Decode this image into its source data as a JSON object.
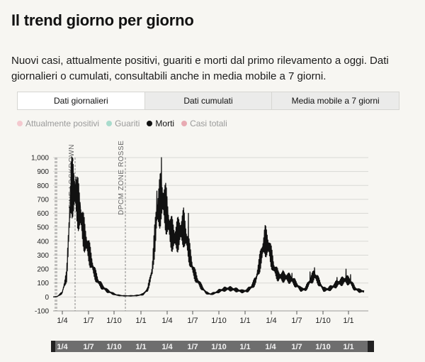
{
  "header": {
    "title": "Il trend giorno per giorno",
    "subtitle": "Nuovi casi, attualmente positivi, guariti e morti dal primo rilevamento a oggi. Dati giornalieri o cumulati, consultabili anche in media mobile a 7 giorni."
  },
  "tabs": [
    {
      "label": "Dati giornalieri",
      "active": true
    },
    {
      "label": "Dati cumulati",
      "active": false
    },
    {
      "label": "Media mobile a 7 giorni",
      "active": false
    }
  ],
  "legend": [
    {
      "label": "Attualmente positivi",
      "color": "#f4c9cf",
      "active": false
    },
    {
      "label": "Guariti",
      "color": "#a9dccd",
      "active": false
    },
    {
      "label": "Morti",
      "color": "#111111",
      "active": true
    },
    {
      "label": "Casi totali",
      "color": "#e8aab2",
      "active": false
    }
  ],
  "chart_data": {
    "type": "line",
    "ylim": [
      -100,
      1000
    ],
    "y_ticks": [
      "1,000",
      "900",
      "800",
      "700",
      "600",
      "500",
      "400",
      "300",
      "200",
      "100",
      "0",
      "-100"
    ],
    "x_ticks": [
      "1/4",
      "1/7",
      "1/10",
      "1/1",
      "1/4",
      "1/7",
      "1/10",
      "1/1"
    ],
    "brush_ticks": [
      "1/4",
      "1/7",
      "1/10",
      "1/1",
      "1/4",
      "1/7",
      "1/10",
      "1/1",
      "1/4",
      "1/7",
      "1/10",
      "1/1"
    ],
    "annotations": [
      "FINE LOCKDOWN",
      "DPCM ZONE ROSSE"
    ],
    "series": [
      {
        "color": "#111111",
        "anchors": [
          [
            0,
            0
          ],
          [
            1,
            5
          ],
          [
            2,
            30
          ],
          [
            3,
            150
          ],
          [
            4,
            800
          ],
          [
            5,
            740
          ],
          [
            6,
            600
          ],
          [
            7,
            430
          ],
          [
            8,
            320
          ],
          [
            9,
            190
          ],
          [
            10,
            110
          ],
          [
            11,
            70
          ],
          [
            12,
            45
          ],
          [
            13,
            28
          ],
          [
            14,
            15
          ],
          [
            15,
            10
          ],
          [
            16,
            8
          ],
          [
            17,
            8
          ],
          [
            18,
            9
          ],
          [
            19,
            12
          ],
          [
            20,
            20
          ],
          [
            21,
            55
          ],
          [
            22,
            190
          ],
          [
            23,
            590
          ],
          [
            24,
            720
          ],
          [
            25,
            640
          ],
          [
            26,
            470
          ],
          [
            27,
            420
          ],
          [
            28,
            460
          ],
          [
            29,
            500
          ],
          [
            30,
            360
          ],
          [
            31,
            200
          ],
          [
            32,
            120
          ],
          [
            33,
            70
          ],
          [
            34,
            30
          ],
          [
            35,
            20
          ],
          [
            36,
            30
          ],
          [
            37,
            45
          ],
          [
            38,
            55
          ],
          [
            39,
            60
          ],
          [
            40,
            55
          ],
          [
            41,
            48
          ],
          [
            42,
            40
          ],
          [
            43,
            45
          ],
          [
            44,
            70
          ],
          [
            45,
            120
          ],
          [
            46,
            260
          ],
          [
            47,
            410
          ],
          [
            48,
            350
          ],
          [
            49,
            210
          ],
          [
            50,
            150
          ],
          [
            51,
            145
          ],
          [
            52,
            140
          ],
          [
            53,
            125
          ],
          [
            54,
            90
          ],
          [
            55,
            55
          ],
          [
            56,
            55
          ],
          [
            57,
            110
          ],
          [
            58,
            160
          ],
          [
            59,
            110
          ],
          [
            60,
            55
          ],
          [
            61,
            55
          ],
          [
            62,
            70
          ],
          [
            63,
            95
          ],
          [
            64,
            110
          ],
          [
            65,
            125
          ],
          [
            66,
            110
          ],
          [
            67,
            60
          ],
          [
            68,
            45
          ],
          [
            69,
            40
          ]
        ],
        "spikes": [
          [
            4,
            970
          ],
          [
            4,
            820
          ],
          [
            5,
            860
          ],
          [
            6,
            640
          ],
          [
            7,
            450
          ],
          [
            23,
            760
          ],
          [
            24,
            1000
          ],
          [
            25,
            720
          ],
          [
            26,
            520
          ],
          [
            29,
            560
          ],
          [
            30,
            600
          ],
          [
            30,
            440
          ],
          [
            47,
            470
          ],
          [
            48,
            380
          ],
          [
            51,
            190
          ],
          [
            53,
            170
          ],
          [
            57,
            180
          ],
          [
            58,
            210
          ],
          [
            63,
            140
          ],
          [
            65,
            200
          ],
          [
            66,
            160
          ]
        ]
      }
    ]
  }
}
